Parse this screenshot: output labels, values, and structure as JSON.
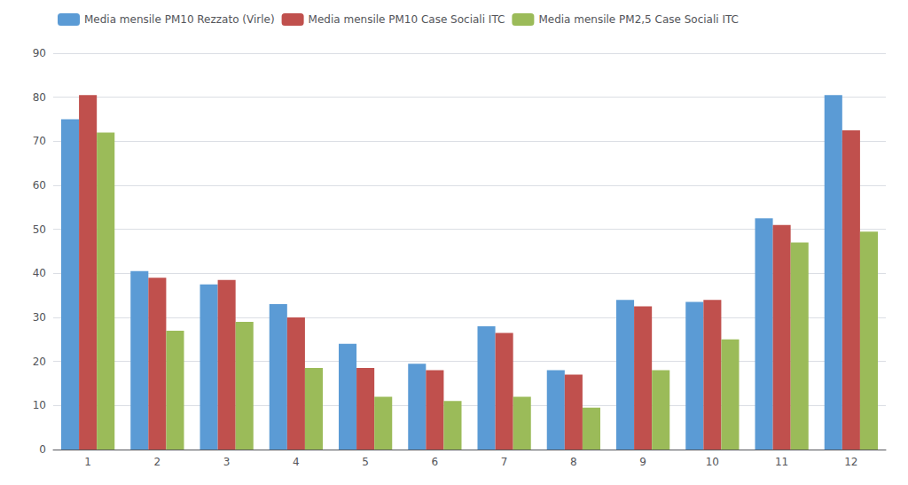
{
  "chart_data": {
    "type": "bar",
    "categories": [
      1,
      2,
      3,
      4,
      5,
      6,
      7,
      8,
      9,
      10,
      11,
      12
    ],
    "series": [
      {
        "name": "Media mensile PM10 Rezzato (Virle)",
        "color": "#5B9BD5",
        "values": [
          75,
          40.5,
          37.5,
          33,
          24,
          19.5,
          28,
          18,
          34,
          33.5,
          52.5,
          80.5
        ]
      },
      {
        "name": "Media mensile PM10 Case Sociali ITC",
        "color": "#C0504D",
        "values": [
          80.5,
          39,
          38.5,
          30,
          18.5,
          18,
          26.5,
          17,
          32.5,
          34,
          51,
          72.5
        ]
      },
      {
        "name": "Media mensile PM2,5 Case Sociali ITC",
        "color": "#9BBB59",
        "values": [
          72,
          27,
          29,
          18.5,
          12,
          11,
          12,
          9.5,
          18,
          25,
          47,
          49.5
        ]
      }
    ],
    "ylim": [
      0,
      90
    ],
    "yticks": [
      0,
      10,
      20,
      30,
      40,
      50,
      60,
      70,
      80,
      90
    ],
    "grid": true,
    "legend": "upper left"
  }
}
